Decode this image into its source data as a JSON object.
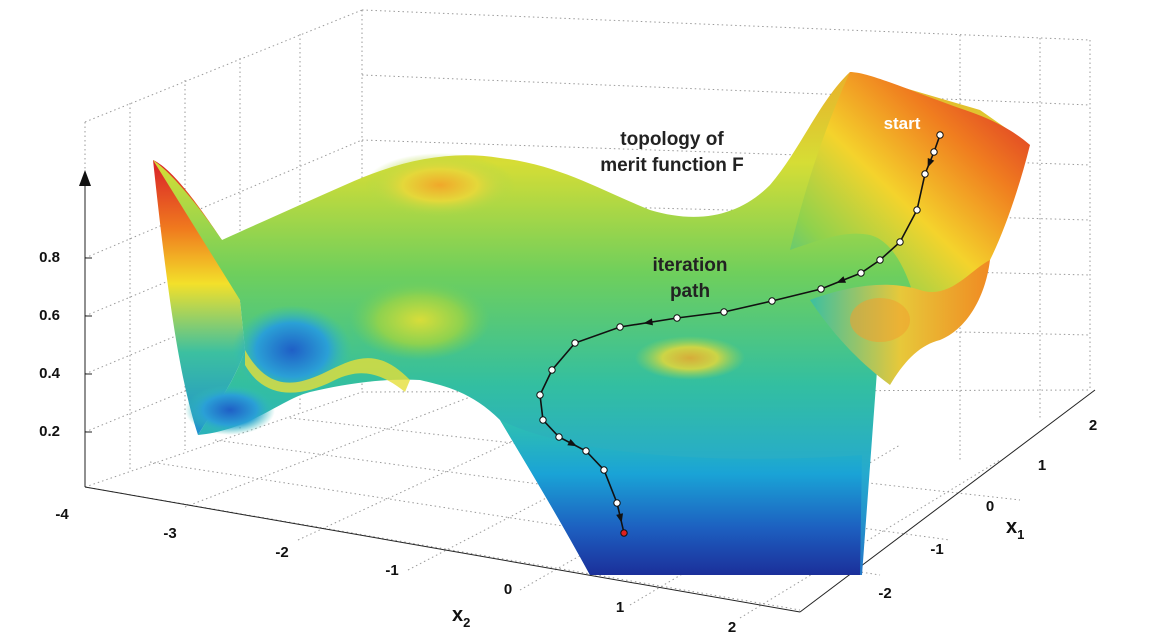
{
  "chart_data": {
    "type": "surface",
    "title": "",
    "xlabel": "x",
    "xlabel_sub": "2",
    "ylabel": "x",
    "ylabel_sub": "1",
    "zlabel": "",
    "x_ticks": [
      "-4",
      "-3",
      "-2",
      "-1",
      "0",
      "1",
      "2"
    ],
    "y_ticks": [
      "-2",
      "-1",
      "0",
      "1",
      "2"
    ],
    "z_ticks": [
      "0.2",
      "0.4",
      "0.6",
      "0.8"
    ],
    "xlim": [
      -4,
      2.5
    ],
    "ylim": [
      -2.5,
      2.5
    ],
    "zlim": [
      0,
      1
    ],
    "grid": true,
    "colormap": "jet",
    "annotations": {
      "surface_label_line1": "topology of",
      "surface_label_line2": "merit function F",
      "path_label_line1": "iteration",
      "path_label_line2": "path",
      "start_label": "start"
    },
    "iteration_path_color": "#111111",
    "end_point_color": "#e02020"
  }
}
